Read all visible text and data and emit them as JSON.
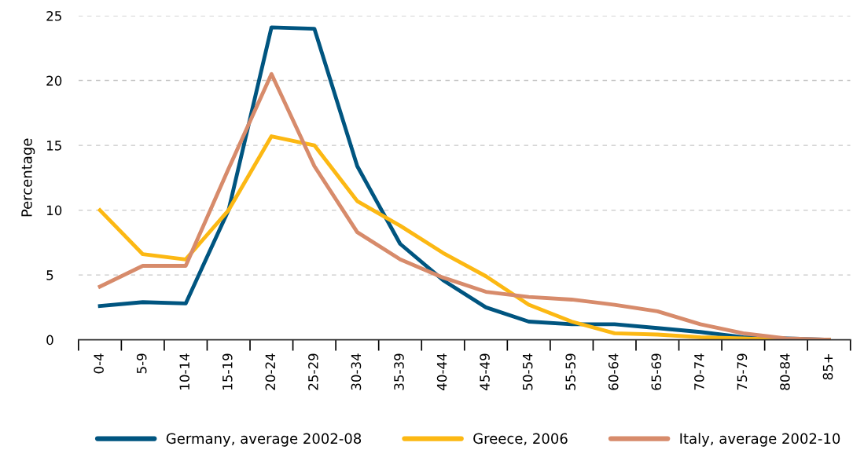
{
  "chart_data": {
    "type": "line",
    "ylabel": "Percentage",
    "categories": [
      "0-4",
      "5-9",
      "10-14",
      "15-19",
      "20-24",
      "25-29",
      "30-34",
      "35-39",
      "40-44",
      "45-49",
      "50-54",
      "55-59",
      "60-64",
      "65-69",
      "70-74",
      "75-79",
      "80-84",
      "85+"
    ],
    "series": [
      {
        "name": "Germany, average 2002-08",
        "color": "#005580",
        "values": [
          2.6,
          2.9,
          2.8,
          10,
          24.1,
          24.0,
          13.4,
          7.4,
          4.6,
          2.5,
          1.4,
          1.2,
          1.2,
          0.9,
          0.6,
          0.2,
          0.1,
          0.0
        ]
      },
      {
        "name": "Greece, 2006",
        "color": "#fcb813",
        "values": [
          10,
          6.6,
          6.2,
          10,
          15.7,
          15.0,
          10.7,
          8.8,
          6.7,
          4.9,
          2.7,
          1.4,
          0.5,
          0.4,
          0.2,
          0.1,
          0.0,
          0.0
        ]
      },
      {
        "name": "Italy, average 2002-10",
        "color": "#d78b6b",
        "values": [
          4.1,
          5.7,
          5.7,
          13.2,
          20.5,
          13.4,
          8.3,
          6.2,
          4.8,
          3.7,
          3.3,
          3.1,
          2.7,
          2.2,
          1.2,
          0.5,
          0.1,
          0.0
        ]
      }
    ],
    "ylim": [
      0,
      25
    ],
    "yticks": [
      0,
      5,
      10,
      15,
      20,
      25
    ],
    "grid": "y",
    "legend": "bottom",
    "marker": "none",
    "line_style": "solid"
  }
}
